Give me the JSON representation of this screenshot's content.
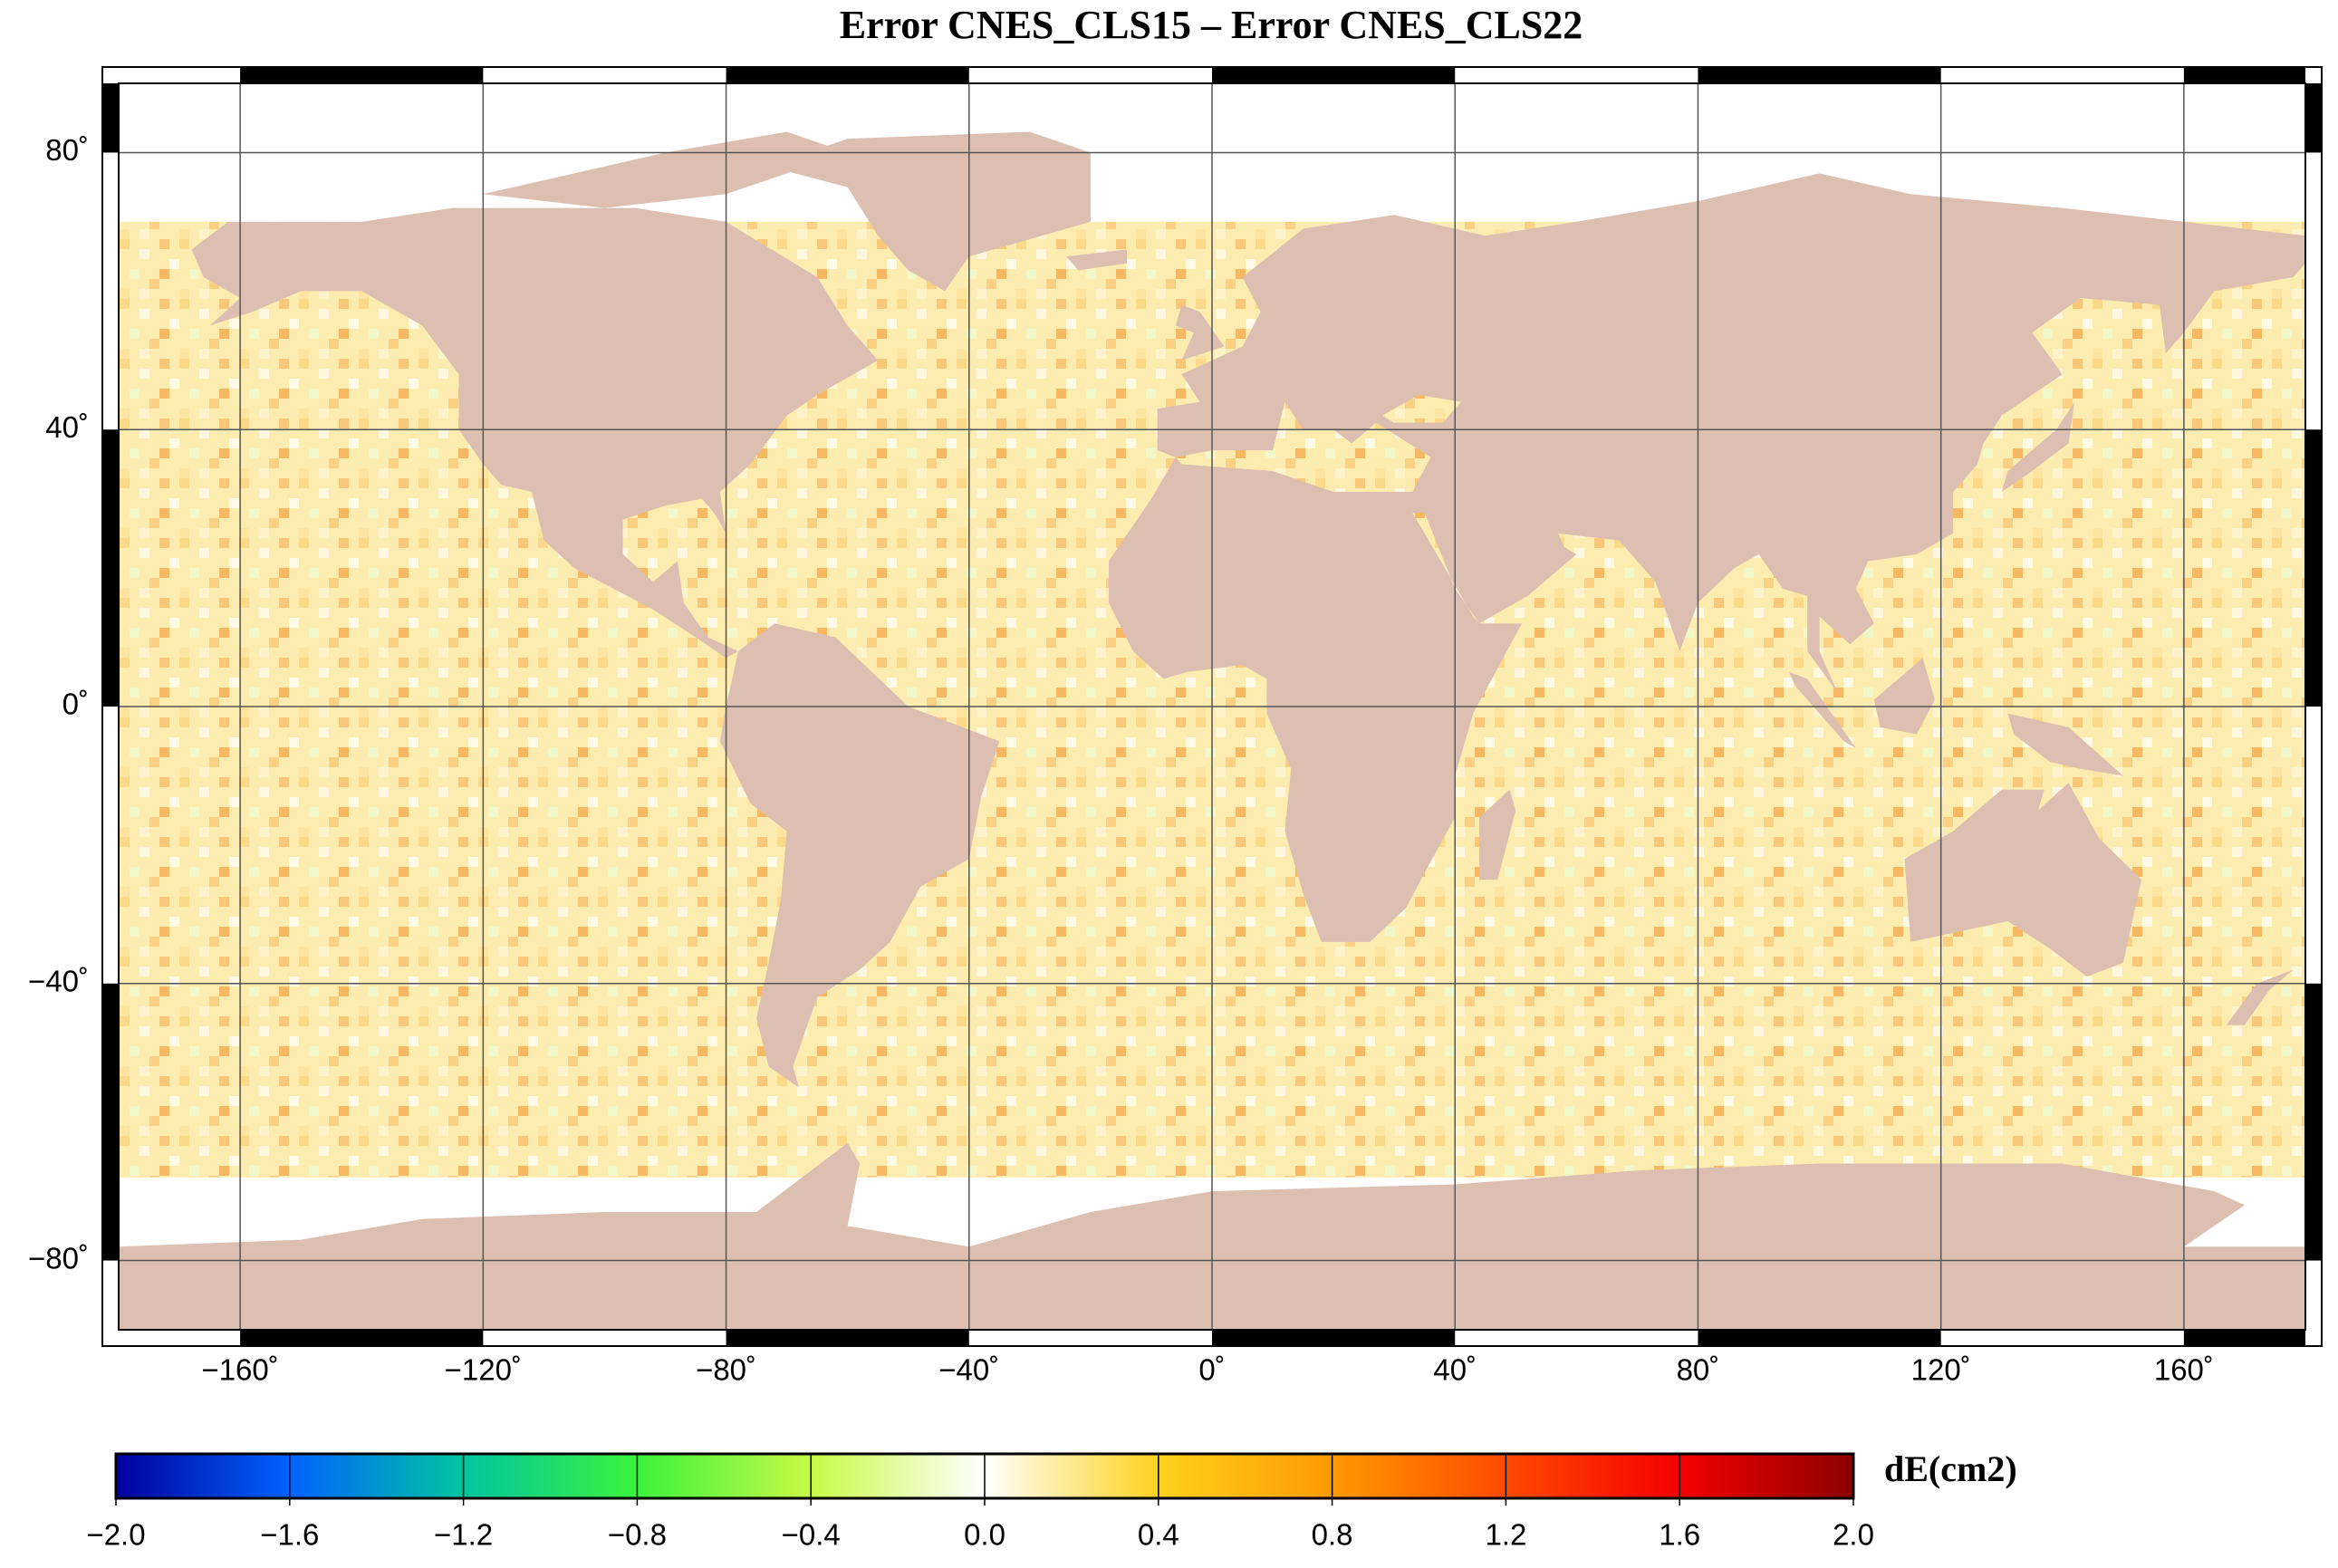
{
  "map": {
    "title": "Error CNES_CLS15 – Error CNES_CLS22",
    "xlim": [
      -180,
      180
    ],
    "ylim": [
      -90,
      90
    ],
    "xticks": [
      {
        "value": -160,
        "label": "−160˚"
      },
      {
        "value": -120,
        "label": "−120˚"
      },
      {
        "value": -80,
        "label": "−80˚"
      },
      {
        "value": -40,
        "label": "−40˚"
      },
      {
        "value": 0,
        "label": "0˚"
      },
      {
        "value": 40,
        "label": "40˚"
      },
      {
        "value": 80,
        "label": "80˚"
      },
      {
        "value": 120,
        "label": "120˚"
      },
      {
        "value": 160,
        "label": "160˚"
      }
    ],
    "yticks": [
      {
        "value": 80,
        "label": "80˚"
      },
      {
        "value": 40,
        "label": "40˚"
      },
      {
        "value": 0,
        "label": "0˚"
      },
      {
        "value": -40,
        "label": "−40˚"
      },
      {
        "value": -80,
        "label": "−80˚"
      }
    ],
    "grid": true,
    "colorbar": {
      "label": "dE(cm2)",
      "lim": [
        -2,
        2
      ],
      "ticks": [
        {
          "value": -2,
          "label": "−2.0"
        },
        {
          "value": -1.6,
          "label": "−1.6"
        },
        {
          "value": -1.2,
          "label": "−1.2"
        },
        {
          "value": -0.8,
          "label": "−0.8"
        },
        {
          "value": -0.4,
          "label": "−0.4"
        },
        {
          "value": 0,
          "label": "0.0"
        },
        0.4,
        0.8,
        1.2,
        1.6,
        {
          "value": 2,
          "label": "2.0"
        }
      ],
      "colors": [
        "#00009c",
        "#0062ff",
        "#00c6a0",
        "#3cf23c",
        "#c8fa46",
        "#ffffff",
        "#ffd21e",
        "#ff9a00",
        "#ff4a00",
        "#f50000",
        "#8c0000"
      ]
    }
  }
}
